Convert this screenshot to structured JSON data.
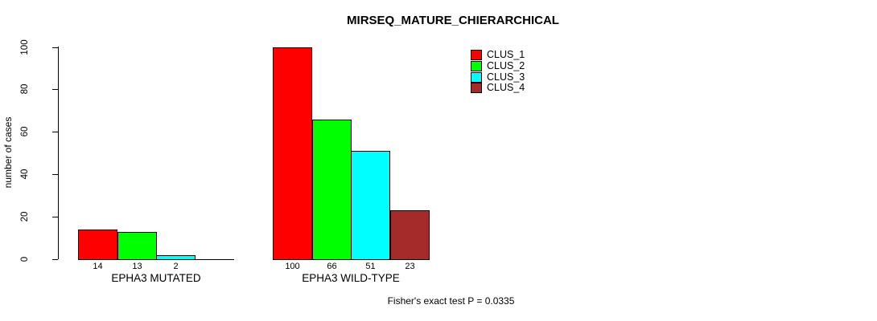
{
  "chart_data": {
    "type": "bar",
    "title": "MIRSEQ_MATURE_CHIERARCHICAL",
    "ylabel": "number of cases",
    "xlabel": "",
    "ylim": [
      0,
      100
    ],
    "yticks": [
      0,
      20,
      40,
      60,
      80,
      100
    ],
    "grid": false,
    "legend_position": "top-right",
    "categories": [
      "EPHA3 MUTATED",
      "EPHA3 WILD-TYPE"
    ],
    "series": [
      {
        "name": "CLUS_1",
        "color": "#ff0000",
        "values": [
          14,
          100
        ]
      },
      {
        "name": "CLUS_2",
        "color": "#00ff00",
        "values": [
          13,
          66
        ]
      },
      {
        "name": "CLUS_3",
        "color": "#00ffff",
        "values": [
          2,
          51
        ]
      },
      {
        "name": "CLUS_4",
        "color": "#a52a2a",
        "values": [
          0,
          23
        ]
      }
    ],
    "bar_value_labels": [
      [
        "14",
        "13",
        "2",
        ""
      ],
      [
        "100",
        "66",
        "51",
        "23"
      ]
    ],
    "annotation": "Fisher's exact test P = 0.0335"
  }
}
